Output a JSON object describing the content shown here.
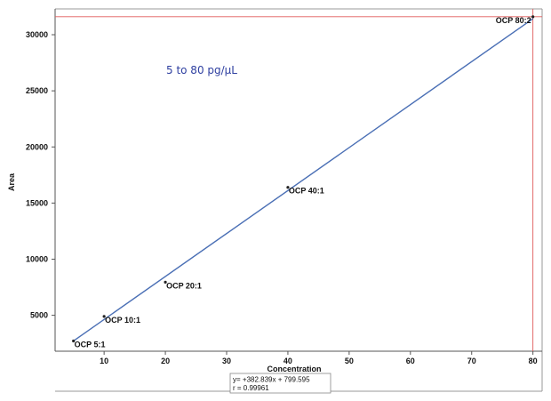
{
  "chart_data": {
    "type": "scatter",
    "title": "",
    "annotation": "5 to 80 pg/µL",
    "xlabel": "Concentration",
    "ylabel": "Area",
    "xlim": [
      2,
      81.5
    ],
    "ylim": [
      1800,
      32300
    ],
    "xticks": [
      10,
      20,
      30,
      40,
      50,
      60,
      70,
      80
    ],
    "yticks": [
      5000,
      10000,
      15000,
      20000,
      25000,
      30000
    ],
    "grid": false,
    "points": [
      {
        "label": "OCP 5:1",
        "x": 5,
        "y": 2710
      },
      {
        "label": "OCP 10:1",
        "x": 10,
        "y": 4900
      },
      {
        "label": "OCP 20:1",
        "x": 20,
        "y": 7950
      },
      {
        "label": "OCP 40:1",
        "x": 40,
        "y": 16400
      },
      {
        "label": "OCP 80:2",
        "x": 80,
        "y": 31600
      }
    ],
    "fit": {
      "slope": 382.839,
      "intercept": 799.595,
      "equation": "y= +382.839x + 799.595",
      "r": "r = 0.99961"
    },
    "reference_lines": {
      "x": 80,
      "y": 31600
    },
    "colors": {
      "fit_line": "#4a6fb5",
      "reference": "#e05a5a",
      "points": "#222222",
      "annotation": "#2e3fa0"
    }
  }
}
